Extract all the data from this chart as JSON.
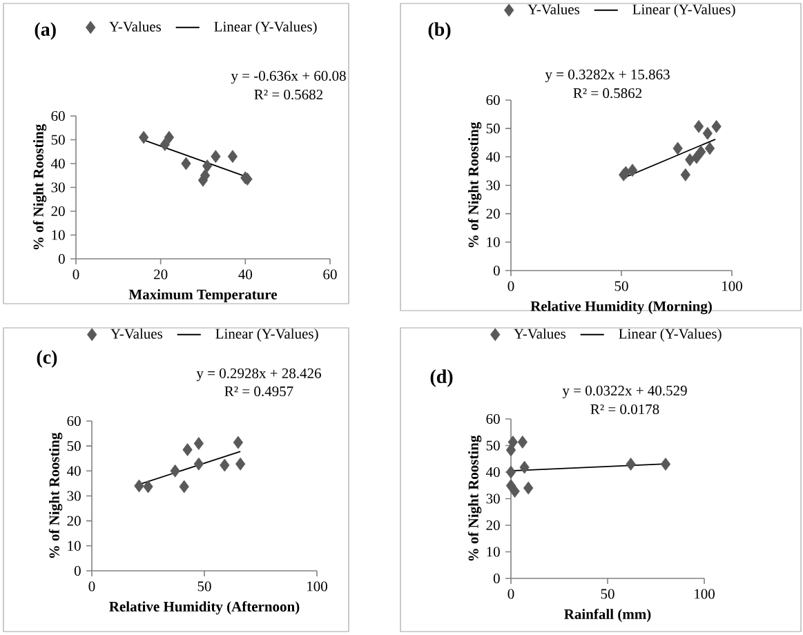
{
  "chart_data": [
    {
      "type": "scatter",
      "title": "(a)",
      "xlabel": "Maximum Temperature",
      "ylabel": "% of Night Roosting",
      "xlim": [
        0,
        60
      ],
      "ylim": [
        0,
        60
      ],
      "xticks": [
        0,
        20,
        40,
        60
      ],
      "yticks": [
        0,
        10,
        20,
        30,
        40,
        50,
        60
      ],
      "legend": "top",
      "annotations": [
        "y = -0.636x + 60.08",
        "R² = 0.5682"
      ],
      "series": [
        {
          "name": "Y-Values",
          "marker": "diamond",
          "color": "#595959",
          "x": [
            16,
            21,
            22,
            26,
            30,
            30.5,
            31,
            33,
            37,
            40,
            40.5
          ],
          "values": [
            51,
            48,
            51,
            40,
            33,
            35,
            39,
            43,
            43,
            34,
            33.5
          ]
        },
        {
          "name": "Linear (Y-Values)",
          "type": "line",
          "marker": "none",
          "color": "#000000",
          "x": [
            16,
            40.5
          ],
          "values": [
            49.9,
            34.3
          ]
        }
      ]
    },
    {
      "type": "scatter",
      "title": "(b)",
      "xlabel": "Relative Humidity (Morning)",
      "ylabel": "% of Night Roosting",
      "xlim": [
        0,
        100
      ],
      "ylim": [
        0,
        60
      ],
      "xticks": [
        0,
        50,
        100
      ],
      "yticks": [
        0,
        10,
        20,
        30,
        40,
        50,
        60
      ],
      "legend": "top",
      "annotations": [
        "y = 0.3282x + 15.863",
        "R² = 0.5862"
      ],
      "series": [
        {
          "name": "Y-Values",
          "marker": "diamond",
          "color": "#595959",
          "x": [
            51,
            52,
            55,
            85,
            93,
            89,
            75.5,
            90,
            86,
            84,
            81,
            79
          ],
          "values": [
            33.7,
            34.5,
            35.3,
            50.7,
            50.7,
            48.3,
            43,
            43,
            41.8,
            39.8,
            39,
            33.7
          ]
        },
        {
          "name": "Linear (Y-Values)",
          "type": "line",
          "marker": "none",
          "color": "#000000",
          "x": [
            51,
            92.5
          ],
          "values": [
            32.6,
            46.2
          ]
        }
      ]
    },
    {
      "type": "scatter",
      "title": "(c)",
      "xlabel": "Relative Humidity (Afternoon)",
      "ylabel": "% of Night Roosting",
      "xlim": [
        0,
        100
      ],
      "ylim": [
        0,
        60
      ],
      "xticks": [
        0,
        50,
        100
      ],
      "yticks": [
        0,
        10,
        20,
        30,
        40,
        50,
        60
      ],
      "legend": "top",
      "annotations": [
        "y = 0.2928x + 28.426",
        "R² = 0.4957"
      ],
      "series": [
        {
          "name": "Y-Values",
          "marker": "diamond",
          "color": "#595959",
          "x": [
            21,
            25,
            37,
            42.5,
            47.5,
            47.5,
            41,
            59,
            65,
            66
          ],
          "values": [
            34,
            33.7,
            40,
            48.5,
            51,
            42.8,
            33.7,
            42.3,
            51.4,
            42.8
          ]
        },
        {
          "name": "Linear (Y-Values)",
          "type": "line",
          "marker": "none",
          "color": "#000000",
          "x": [
            21,
            66
          ],
          "values": [
            34.6,
            47.8
          ]
        }
      ]
    },
    {
      "type": "scatter",
      "title": "(d)",
      "xlabel": "Rainfall (mm)",
      "ylabel": "% of Night Roosting",
      "xlim": [
        0,
        100
      ],
      "ylim": [
        0,
        60
      ],
      "xticks": [
        0,
        50,
        100
      ],
      "yticks": [
        0,
        10,
        20,
        30,
        40,
        50,
        60
      ],
      "legend": "top",
      "annotations": [
        "y = 0.0322x + 40.529",
        "R² = 0.0178"
      ],
      "series": [
        {
          "name": "Y-Values",
          "marker": "diamond",
          "color": "#595959",
          "x": [
            1,
            6,
            0,
            0,
            7,
            0,
            2,
            9,
            62,
            80
          ],
          "values": [
            51.3,
            51.3,
            48.3,
            40,
            41.8,
            34.9,
            32.8,
            34,
            43,
            43
          ]
        },
        {
          "name": "Linear (Y-Values)",
          "type": "line",
          "marker": "none",
          "color": "#000000",
          "x": [
            0,
            80
          ],
          "values": [
            40.5,
            43.1
          ]
        }
      ]
    }
  ]
}
